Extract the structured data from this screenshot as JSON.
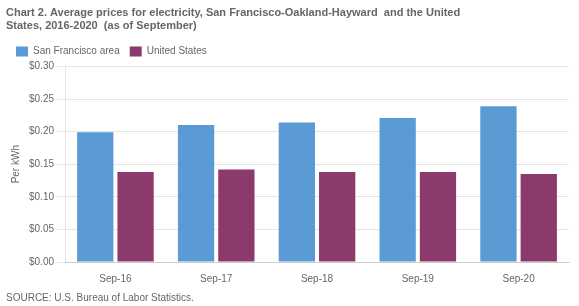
{
  "chart_data": {
    "type": "bar",
    "title": "Chart 2. Average prices for electricity, San Francisco-Oakland-Hayward  and the United\nStates, 2016-2020  (as of September)",
    "ylabel": "Per kWh",
    "annotations": [
      "SOURCE: U.S. Bureau of Labor Statistics."
    ],
    "categories": [
      "Sep-16",
      "Sep-17",
      "Sep-18",
      "Sep-19",
      "Sep-20"
    ],
    "series": [
      {
        "name": "San Francisco area",
        "color": "#5B9BD5",
        "values": [
          0.199,
          0.21,
          0.214,
          0.221,
          0.239
        ]
      },
      {
        "name": "United States",
        "color": "#8B3A6B",
        "values": [
          0.138,
          0.142,
          0.138,
          0.138,
          0.135
        ]
      }
    ],
    "ylim": [
      0.0,
      0.3
    ],
    "yticks": [
      {
        "value": 0.0,
        "label": "$0.00"
      },
      {
        "value": 0.05,
        "label": "$0.05"
      },
      {
        "value": 0.1,
        "label": "$0.10"
      },
      {
        "value": 0.15,
        "label": "$0.15"
      },
      {
        "value": 0.2,
        "label": "$0.20"
      },
      {
        "value": 0.25,
        "label": "$0.25"
      },
      {
        "value": 0.3,
        "label": "$0.30"
      }
    ],
    "grid": true,
    "legend": "upper left"
  }
}
